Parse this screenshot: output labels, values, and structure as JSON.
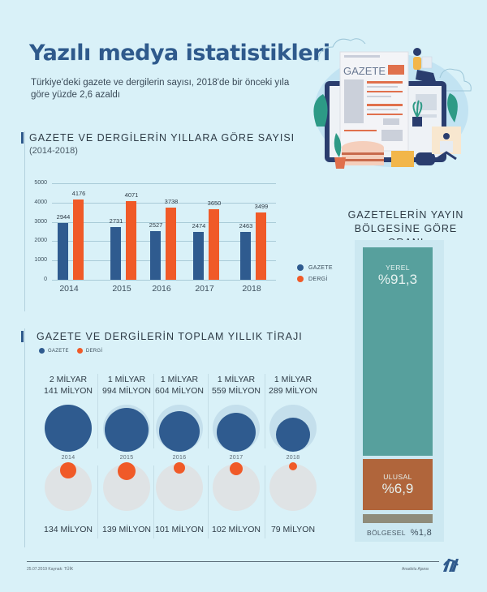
{
  "header": {
    "title": "Yazılı medya istatistikleri",
    "subtitle": "Türkiye'deki gazete ve dergilerin sayısı, 2018'de bir önceki yıla göre yüzde 2,6 azaldı"
  },
  "illustration": {
    "newspaper_label": "GAZETE",
    "icon": "newspaper-reading-illustration"
  },
  "colors": {
    "background": "#d9f1f8",
    "gazete": "#2f5b8f",
    "dergi": "#f05a28",
    "title": "#2f5a8c",
    "yerel": "#57a09d",
    "ulusal": "#b0653b",
    "bolgesel": "#8f8c7a",
    "circle_bg_gazete": "#c4dfec",
    "circle_bg_dergi": "#dfe3e5"
  },
  "count_section": {
    "title": "GAZETE VE DERGİLERİN YILLARA GÖRE SAYISI",
    "subtitle": "(2014-2018)",
    "legend": [
      {
        "label": "GAZETE",
        "color": "#2f5b8f"
      },
      {
        "label": "DERGİ",
        "color": "#f05a28"
      }
    ]
  },
  "circulation_section": {
    "title": "GAZETE VE DERGİLERİN TOPLAM YILLIK TİRAJI",
    "legend": [
      {
        "label": "GAZETE",
        "color": "#2f5b8f"
      },
      {
        "label": "DERGİ",
        "color": "#f05a28"
      }
    ],
    "years": [
      {
        "year": "2014",
        "gazete_line1": "2 MİLYAR",
        "gazete_line2": "141 MİLYON",
        "dergi": "134 MİLYON"
      },
      {
        "year": "2015",
        "gazete_line1": "1 MİLYAR",
        "gazete_line2": "994 MİLYON",
        "dergi": "139 MİLYON"
      },
      {
        "year": "2016",
        "gazete_line1": "1 MİLYAR",
        "gazete_line2": "604 MİLYON",
        "dergi": "101 MİLYON"
      },
      {
        "year": "2017",
        "gazete_line1": "1 MİLYAR",
        "gazete_line2": "559 MİLYON",
        "dergi": "102 MİLYON"
      },
      {
        "year": "2018",
        "gazete_line1": "1 MİLYAR",
        "gazete_line2": "289 MİLYON",
        "dergi": "79 MİLYON"
      }
    ]
  },
  "region_section": {
    "title_line1": "GAZETELERİN YAYIN",
    "title_line2": "BÖLGESİNE GÖRE ORANI",
    "segments": [
      {
        "name": "YEREL",
        "value": "%91,3"
      },
      {
        "name": "ULUSAL",
        "value": "%6,9"
      },
      {
        "name": "BÖLGESEL",
        "value": "%1,8"
      }
    ]
  },
  "footer": {
    "date_source": "25.07.2019  Kaynak: TÜİK",
    "agency": "Anadolu Ajansı",
    "logo": "AA"
  },
  "chart_data": [
    {
      "type": "bar",
      "title": "GAZETE VE DERGİLERİN YILLARA GÖRE SAYISI",
      "subtitle": "(2014-2018)",
      "categories": [
        "2014",
        "2015",
        "2016",
        "2017",
        "2018"
      ],
      "series": [
        {
          "name": "GAZETE",
          "color": "#2f5b8f",
          "values": [
            2944,
            2731,
            2527,
            2474,
            2463
          ]
        },
        {
          "name": "DERGİ",
          "color": "#f05a28",
          "values": [
            4176,
            4071,
            3738,
            3650,
            3499
          ]
        }
      ],
      "yticks": [
        0,
        1000,
        2000,
        3000,
        4000,
        5000
      ],
      "ylim": [
        0,
        5000
      ],
      "xlabel": "",
      "ylabel": "",
      "grid": true,
      "legend_position": "right-bottom"
    },
    {
      "type": "bubble",
      "title": "GAZETE VE DERGİLERİN TOPLAM YILLIK TİRAJI",
      "categories": [
        "2014",
        "2015",
        "2016",
        "2017",
        "2018"
      ],
      "series": [
        {
          "name": "GAZETE",
          "color": "#2f5b8f",
          "values": [
            2141000000,
            1994000000,
            1604000000,
            1559000000,
            1289000000
          ],
          "labels": [
            "2 MİLYAR 141 MİLYON",
            "1 MİLYAR 994 MİLYON",
            "1 MİLYAR 604 MİLYON",
            "1 MİLYAR 559 MİLYON",
            "1 MİLYAR 289 MİLYON"
          ]
        },
        {
          "name": "DERGİ",
          "color": "#f05a28",
          "values": [
            134000000,
            139000000,
            101000000,
            102000000,
            79000000
          ],
          "labels": [
            "134 MİLYON",
            "139 MİLYON",
            "101 MİLYON",
            "102 MİLYON",
            "79 MİLYON"
          ]
        }
      ]
    },
    {
      "type": "stacked-bar",
      "title": "GAZETELERİN YAYIN BÖLGESİNE GÖRE ORANI",
      "categories": [
        "YEREL",
        "ULUSAL",
        "BÖLGESEL"
      ],
      "values": [
        91.3,
        6.9,
        1.8
      ],
      "unit": "%",
      "colors": [
        "#57a09d",
        "#b0653b",
        "#8f8c7a"
      ]
    }
  ]
}
